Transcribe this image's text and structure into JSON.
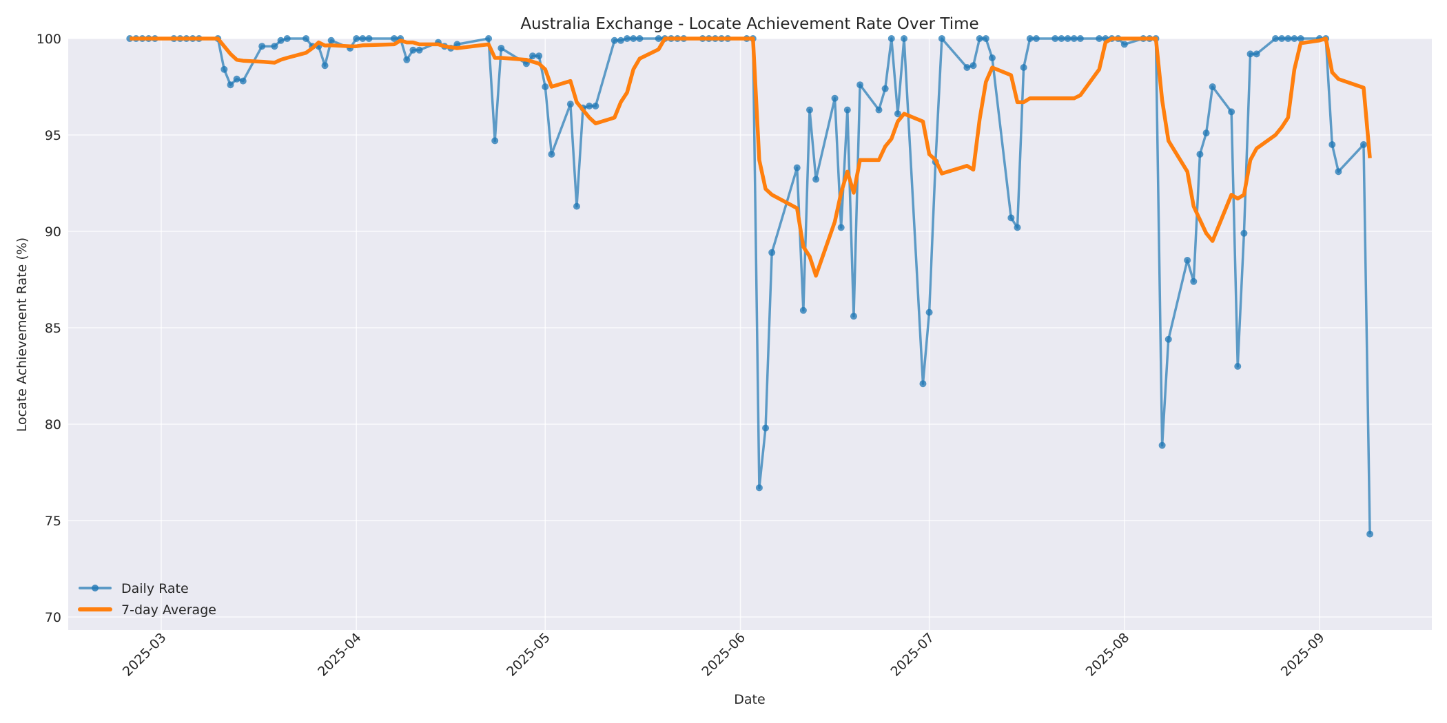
{
  "chart_data": {
    "type": "line",
    "title": "Australia Exchange - Locate Achievement Rate Over Time",
    "xlabel": "Date",
    "ylabel": "Locate Achievement Rate (%)",
    "ylim": [
      69.3,
      100
    ],
    "yticks": [
      70,
      75,
      80,
      85,
      90,
      95,
      100
    ],
    "xticks": [
      "2025-03",
      "2025-04",
      "2025-05",
      "2025-06",
      "2025-07",
      "2025-08",
      "2025-09"
    ],
    "grid": true,
    "legend_position": "lower left",
    "colors": {
      "daily": "#1f77b4",
      "average": "#ff7f0e",
      "plot_bg": "#eaeaf2",
      "grid": "#ffffff"
    },
    "x": [
      "2025-02-24",
      "2025-02-25",
      "2025-02-26",
      "2025-02-27",
      "2025-02-28",
      "2025-03-03",
      "2025-03-04",
      "2025-03-05",
      "2025-03-06",
      "2025-03-07",
      "2025-03-10",
      "2025-03-11",
      "2025-03-12",
      "2025-03-13",
      "2025-03-14",
      "2025-03-17",
      "2025-03-19",
      "2025-03-20",
      "2025-03-21",
      "2025-03-24",
      "2025-03-25",
      "2025-03-26",
      "2025-03-27",
      "2025-03-28",
      "2025-03-31",
      "2025-04-01",
      "2025-04-02",
      "2025-04-03",
      "2025-04-07",
      "2025-04-08",
      "2025-04-09",
      "2025-04-10",
      "2025-04-11",
      "2025-04-14",
      "2025-04-15",
      "2025-04-16",
      "2025-04-17",
      "2025-04-22",
      "2025-04-23",
      "2025-04-24",
      "2025-04-28",
      "2025-04-29",
      "2025-04-30",
      "2025-05-01",
      "2025-05-02",
      "2025-05-05",
      "2025-05-06",
      "2025-05-07",
      "2025-05-08",
      "2025-05-09",
      "2025-05-12",
      "2025-05-13",
      "2025-05-14",
      "2025-05-15",
      "2025-05-16",
      "2025-05-19",
      "2025-05-20",
      "2025-05-21",
      "2025-05-22",
      "2025-05-23",
      "2025-05-26",
      "2025-05-27",
      "2025-05-28",
      "2025-05-29",
      "2025-05-30",
      "2025-06-02",
      "2025-06-03",
      "2025-06-04",
      "2025-06-05",
      "2025-06-06",
      "2025-06-10",
      "2025-06-11",
      "2025-06-12",
      "2025-06-13",
      "2025-06-16",
      "2025-06-17",
      "2025-06-18",
      "2025-06-19",
      "2025-06-20",
      "2025-06-23",
      "2025-06-24",
      "2025-06-25",
      "2025-06-26",
      "2025-06-27",
      "2025-06-30",
      "2025-07-01",
      "2025-07-02",
      "2025-07-03",
      "2025-07-07",
      "2025-07-08",
      "2025-07-09",
      "2025-07-10",
      "2025-07-11",
      "2025-07-14",
      "2025-07-15",
      "2025-07-16",
      "2025-07-17",
      "2025-07-18",
      "2025-07-21",
      "2025-07-22",
      "2025-07-23",
      "2025-07-24",
      "2025-07-25",
      "2025-07-28",
      "2025-07-29",
      "2025-07-30",
      "2025-07-31",
      "2025-08-01",
      "2025-08-04",
      "2025-08-05",
      "2025-08-06",
      "2025-08-07",
      "2025-08-08",
      "2025-08-11",
      "2025-08-12",
      "2025-08-13",
      "2025-08-14",
      "2025-08-15",
      "2025-08-18",
      "2025-08-19",
      "2025-08-20",
      "2025-08-21",
      "2025-08-22",
      "2025-08-25",
      "2025-08-26",
      "2025-08-27",
      "2025-08-28",
      "2025-08-29",
      "2025-09-01",
      "2025-09-02",
      "2025-09-03",
      "2025-09-04",
      "2025-09-08",
      "2025-09-09"
    ],
    "series": [
      {
        "name": "Daily Rate",
        "values": [
          100,
          100,
          100,
          100,
          100,
          100,
          100,
          100,
          100,
          100,
          100,
          98.4,
          97.6,
          97.9,
          97.8,
          99.6,
          99.6,
          99.9,
          100,
          100,
          99.6,
          99.6,
          98.6,
          99.9,
          99.5,
          100,
          100,
          100,
          100,
          100,
          98.9,
          99.4,
          99.4,
          99.8,
          99.6,
          99.5,
          99.7,
          100,
          94.7,
          99.5,
          98.7,
          99.1,
          99.1,
          97.5,
          94.0,
          96.6,
          91.3,
          96.4,
          96.5,
          96.5,
          99.9,
          99.9,
          100,
          100,
          100,
          100,
          100,
          100,
          100,
          100,
          100,
          100,
          100,
          100,
          100,
          100,
          100,
          76.7,
          79.8,
          88.9,
          93.3,
          85.9,
          96.3,
          92.7,
          96.9,
          90.2,
          96.3,
          85.6,
          97.6,
          96.3,
          97.4,
          100,
          96.1,
          100,
          82.1,
          85.8,
          93.6,
          100,
          98.5,
          98.6,
          100,
          100,
          99.0,
          90.7,
          90.2,
          98.5,
          100,
          100,
          100,
          100,
          100,
          100,
          100,
          100,
          100,
          100,
          100,
          99.7,
          100,
          100,
          100,
          78.9,
          84.4,
          88.5,
          87.4,
          94.0,
          95.1,
          97.5,
          96.2,
          83.0,
          89.9,
          99.2,
          99.2,
          100,
          100,
          100,
          100,
          100,
          100,
          100,
          94.5,
          93.1,
          94.5,
          74.3
        ]
      },
      {
        "name": "7-day Average",
        "values": [
          100,
          100,
          100,
          100,
          100,
          100,
          100,
          100,
          100,
          100,
          100,
          99.6,
          99.2,
          98.9,
          98.85,
          98.8,
          98.75,
          98.9,
          99.0,
          99.26,
          99.5,
          99.8,
          99.64,
          99.65,
          99.6,
          99.6,
          99.65,
          99.66,
          99.7,
          99.9,
          99.8,
          99.8,
          99.7,
          99.7,
          99.6,
          99.55,
          99.5,
          99.7,
          99.0,
          99.0,
          98.9,
          98.8,
          98.7,
          98.4,
          97.5,
          97.8,
          96.7,
          96.3,
          95.9,
          95.6,
          95.9,
          96.7,
          97.2,
          98.4,
          98.96,
          99.44,
          100,
          100,
          100,
          100,
          100,
          100,
          100,
          100,
          100,
          100,
          100,
          93.7,
          92.2,
          91.9,
          91.2,
          89.2,
          88.7,
          87.7,
          90.5,
          92.0,
          93.1,
          92.0,
          93.7,
          93.7,
          94.4,
          94.8,
          95.7,
          96.1,
          95.7,
          94.0,
          93.7,
          93.0,
          93.4,
          93.2,
          95.8,
          97.75,
          98.5,
          98.1,
          96.7,
          96.7,
          96.9,
          96.9,
          96.9,
          96.9,
          96.9,
          96.9,
          97.06,
          98.4,
          99.8,
          100,
          100,
          100,
          100,
          100,
          100,
          96.8,
          94.7,
          93.1,
          91.3,
          90.6,
          89.9,
          89.5,
          91.9,
          91.7,
          91.9,
          93.7,
          94.3,
          95.0,
          95.4,
          95.9,
          98.4,
          99.76,
          99.9,
          100,
          98.25,
          97.9,
          97.45,
          93.8
        ]
      }
    ]
  },
  "legend": {
    "items": [
      {
        "label": "Daily Rate"
      },
      {
        "label": "7-day Average"
      }
    ]
  }
}
